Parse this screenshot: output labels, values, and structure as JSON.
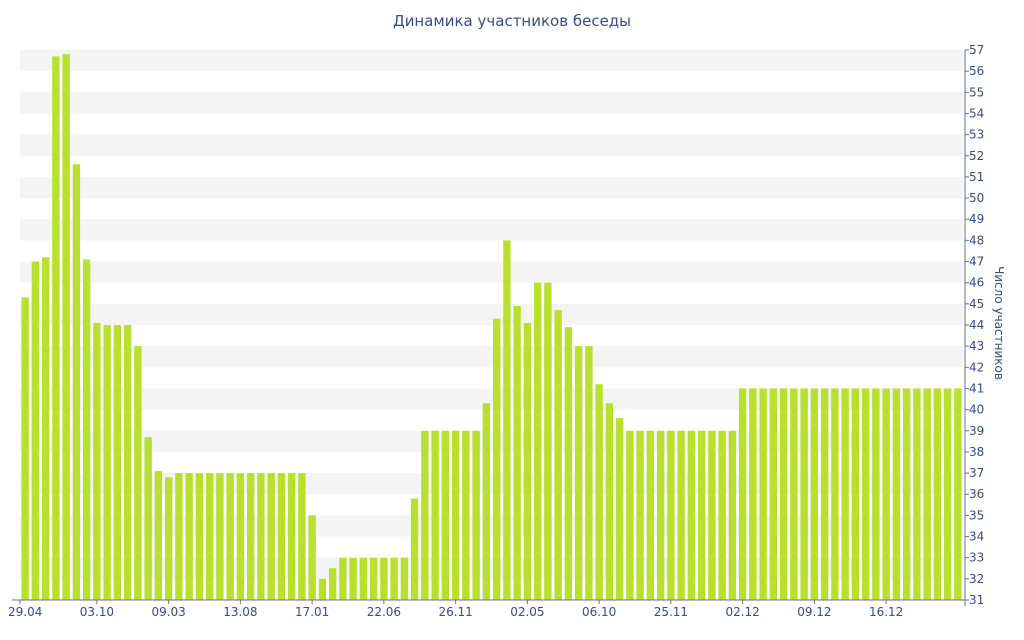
{
  "chart_data": {
    "type": "bar",
    "title": "Динамика участников беседы",
    "ylabel": "Число участников",
    "ylim": [
      31,
      57
    ],
    "y_ticks": [
      31,
      32,
      33,
      34,
      35,
      36,
      37,
      38,
      39,
      40,
      41,
      42,
      43,
      44,
      45,
      46,
      47,
      48,
      49,
      50,
      51,
      52,
      53,
      54,
      55,
      56,
      57
    ],
    "x_tick_labels": [
      "29.04",
      "03.10",
      "09.03",
      "13.08",
      "17.01",
      "22.06",
      "26.11",
      "02.05",
      "06.10",
      "25.11",
      "02.12",
      "09.12",
      "16.12"
    ],
    "x_tick_indices": [
      0,
      7,
      14,
      21,
      28,
      35,
      42,
      49,
      56,
      63,
      70,
      77,
      84
    ],
    "grid": "horizontal bands",
    "bar_color": "#b8e02e",
    "values": [
      45.3,
      47,
      47.2,
      56.7,
      56.8,
      51.6,
      47.1,
      44.1,
      44,
      44,
      44,
      43,
      38.7,
      37.1,
      36.8,
      37,
      37,
      37,
      37,
      37,
      37,
      37,
      37,
      37,
      37,
      37,
      37,
      37,
      35,
      32,
      32.5,
      33,
      33,
      33,
      33,
      33,
      33,
      33,
      35.8,
      39,
      39,
      39,
      39,
      39,
      39,
      40.3,
      44.3,
      48,
      44.9,
      44.1,
      46,
      46,
      44.7,
      43.9,
      43,
      43,
      41.2,
      40.3,
      39.6,
      39,
      39,
      39,
      39,
      39,
      39,
      39,
      39,
      39,
      39,
      39,
      41,
      41,
      41,
      41,
      41,
      41,
      41,
      41,
      41,
      41,
      41,
      41,
      41,
      41,
      41,
      41,
      41,
      41,
      41,
      41,
      41,
      41
    ]
  }
}
